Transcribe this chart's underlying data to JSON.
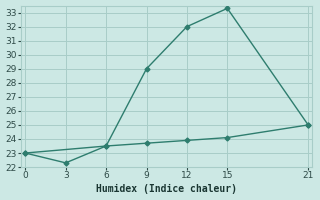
{
  "xlabel": "Humidex (Indice chaleur)",
  "x_upper": [
    0,
    6,
    9,
    12,
    15,
    21
  ],
  "y_upper": [
    23,
    23.5,
    29,
    32,
    33.3,
    25
  ],
  "x_lower": [
    0,
    3,
    6,
    9,
    12,
    15,
    21
  ],
  "y_lower": [
    23,
    22.3,
    23.5,
    23.7,
    23.9,
    24.1,
    25
  ],
  "line_color": "#2e7d6e",
  "bg_color": "#cce8e4",
  "grid_color": "#a8cdc8",
  "xlim": [
    -0.3,
    21.3
  ],
  "ylim": [
    22,
    33.5
  ],
  "xticks": [
    0,
    3,
    6,
    9,
    12,
    15,
    21
  ],
  "yticks": [
    22,
    23,
    24,
    25,
    26,
    27,
    28,
    29,
    30,
    31,
    32,
    33
  ],
  "marker": "D",
  "marker_size": 2.5,
  "line_width": 1.0,
  "tick_fontsize": 6.5,
  "xlabel_fontsize": 7
}
